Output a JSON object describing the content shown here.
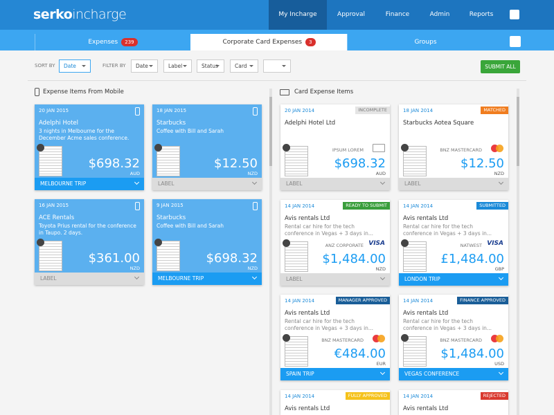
{
  "header": {
    "brand": "serko",
    "product": "incharge",
    "nav": [
      "My Incharge",
      "Approval",
      "Finance",
      "Admin",
      "Reports"
    ]
  },
  "tabs": [
    {
      "label": "Expenses",
      "badge": "239"
    },
    {
      "label": "Corporate Card Expenses",
      "badge": "3"
    },
    {
      "label": "Groups"
    }
  ],
  "toolbar": {
    "sort_label": "SORT BY",
    "sort_value": "Date",
    "filter_label": "FILTER BY",
    "filters": [
      "Date",
      "Label",
      "Status",
      "Card"
    ],
    "submit": "SUBMIT ALL"
  },
  "mobile_panel": {
    "title": "Expense Items From Mobile",
    "cards": [
      {
        "date": "20 JAN 2015",
        "merchant": "Adelphi Hotel",
        "description": "3 nights in Melbourne for the December Acme sales conference.",
        "amount": "$698.32",
        "currency": "AUD",
        "tag": "MELBOURNE TRIP",
        "tag_color": "#1b9cf2"
      },
      {
        "date": "18 JAN 2015",
        "merchant": "Starbucks",
        "description": "Coffee with Bill and Sarah",
        "amount": "$12.50",
        "currency": "NZD",
        "tag": "LABEL",
        "tag_color": "#dcdcdc"
      },
      {
        "date": "16 JAN 2015",
        "merchant": "ACE Rentals",
        "description": "Toyota Prius rental for the conference in Taupo. 2 days.",
        "amount": "$361.00",
        "currency": "NZD",
        "tag": "LABEL",
        "tag_color": "#dcdcdc"
      },
      {
        "date": "9 JAN 2015",
        "merchant": "Starbucks",
        "description": "Coffee with Bill and Sarah",
        "amount": "$698.32",
        "currency": "NZD",
        "tag": "MELBOURNE TRIP",
        "tag_color": "#1b9cf2"
      }
    ]
  },
  "card_panel": {
    "title": "Card Expense Items",
    "cards": [
      {
        "date": "20 JAN 2014",
        "status": "INCOMPLETE",
        "status_color": "#e4e4e4",
        "status_text_color": "#777777",
        "merchant": "Adelphi Hotel Ltd",
        "card": "IPSUM LOREM",
        "amount": "$698.32",
        "currency": "AUD",
        "tag": "LABEL",
        "tag_color": "#dcdcdc"
      },
      {
        "date": "18 JAN 2014",
        "status": "MATCHED",
        "status_color": "#f07d1f",
        "merchant": "Starbucks Aotea Square",
        "card": "BNZ MASTERCARD",
        "logo_colors": [
          "#e8262b",
          "#f6a21c"
        ],
        "amount": "$12.50",
        "currency": "NZD",
        "tag": "LABEL",
        "tag_color": "#dcdcdc"
      },
      {
        "date": "14 JAN 2014",
        "status": "READY TO SUBMIT",
        "status_color": "#3a9e3c",
        "merchant": "Avis rentals Ltd",
        "description": "Rental car hire for the tech conference in Vegas + 3 days in...",
        "card": "ANZ CORPORATE",
        "logo": "VISA",
        "amount": "$1,484.00",
        "currency": "NZD",
        "tag": "LABEL",
        "tag_color": "#dcdcdc"
      },
      {
        "date": "14 JAN 2014",
        "status": "SUBMITTED",
        "status_color": "#1b8ad8",
        "merchant": "Avis rentals Ltd",
        "description": "Rental car hire for the tech conference in Vegas + 3 days in...",
        "card": "NATWEST",
        "logo": "VISA",
        "amount": "£1,484.00",
        "currency": "GBP",
        "tag": "LONDON TRIP",
        "tag_color": "#1b9cf2"
      },
      {
        "date": "14 JAN 2014",
        "status": "MANAGER APPROVED",
        "status_color": "#1a5e98",
        "merchant": "Avis rentals Ltd",
        "description": "Rental car hire for the tech conference in Vegas + 3 days in...",
        "card": "BNZ MASTERCARD",
        "logo_colors": [
          "#e8262b",
          "#f6a21c"
        ],
        "amount": "€484.00",
        "currency": "EUR",
        "tag": "SPAIN TRIP",
        "tag_color": "#1b9cf2"
      },
      {
        "date": "14 JAN 2014",
        "status": "FINANCE APPROVED",
        "status_color": "#1a5e98",
        "merchant": "Avis rentals Ltd",
        "description": "Rental car hire for the tech conference in Vegas + 3 days in...",
        "card": "BNZ MASTERCARD",
        "logo_colors": [
          "#e8262b",
          "#f6a21c"
        ],
        "amount": "$1,484.00",
        "currency": "USD",
        "tag": "VEGAS CONFERENCE",
        "tag_color": "#1b9cf2"
      },
      {
        "date": "14 JAN 2014",
        "status": "FULLY APPROVED",
        "status_color": "#f5c21b",
        "merchant": "Avis rentals Ltd"
      },
      {
        "date": "14 JAN 2014",
        "status": "REJECTED",
        "status_color": "#d93a2f",
        "merchant": "Avis rentals Ltd"
      }
    ]
  }
}
